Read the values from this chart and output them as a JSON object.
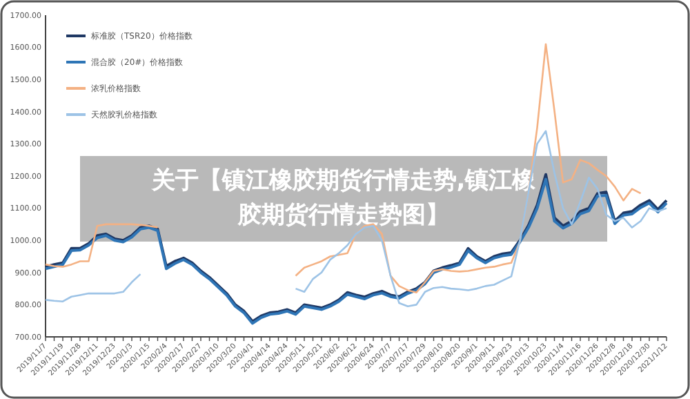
{
  "chart_data": {
    "type": "line",
    "title": "关于【镇江橡胶期货行情走势,镇江橡胶期货行情走势图】",
    "categories": [
      "2019/11/7",
      null,
      "2019/11/19",
      null,
      "2019/11/28",
      null,
      "2019/12/11",
      null,
      "2019/12/23",
      null,
      "2020/1/3",
      null,
      "2020/1/15",
      null,
      "2020/2/4",
      null,
      "2020/2/17",
      null,
      "2020/2/27",
      null,
      "2020/3/10",
      null,
      "2020/3/20",
      null,
      "2020/4/1",
      null,
      "2020/4/14",
      null,
      "2020/4/24",
      null,
      "2020/5/11",
      null,
      "2020/5/21",
      null,
      "2020/6/2",
      null,
      "2020/6/12",
      null,
      "2020/6/24",
      null,
      "2020/7/7",
      null,
      "2020/7/17",
      null,
      "2020/7/29",
      null,
      "2020/8/10",
      null,
      "2020/8/20",
      null,
      "2020/9/1",
      null,
      "2020/9/11",
      null,
      "2020/9/23",
      null,
      "2020/10/13",
      null,
      "2020/10/23",
      null,
      "2020/11/4",
      null,
      "2020/11/16",
      null,
      "2020/11/26",
      null,
      "2020/12/8",
      null,
      "2020/12/18",
      null,
      "2020/12/30",
      null,
      "2021/1/12"
    ],
    "series": [
      {
        "name": "标准胶（TSR20）价格指数",
        "color": "#1f3864",
        "values": [
          918,
          925,
          930,
          975,
          975,
          990,
          1015,
          1020,
          1005,
          1000,
          1015,
          1040,
          1045,
          1035,
          920,
          935,
          945,
          930,
          905,
          885,
          860,
          835,
          800,
          780,
          748,
          765,
          775,
          778,
          785,
          775,
          800,
          795,
          790,
          800,
          815,
          838,
          830,
          824,
          835,
          842,
          830,
          825,
          840,
          850,
          870,
          905,
          915,
          922,
          930,
          975,
          950,
          935,
          950,
          958,
          962,
          1000,
          1047,
          1110,
          1205,
          1070,
          1045,
          1060,
          1090,
          1100,
          1146,
          1150,
          1060,
          1085,
          1090,
          1110,
          1124,
          1096,
          1124
        ]
      },
      {
        "name": "混合胶（20#）价格指数",
        "color": "#2e75b6",
        "values": [
          912,
          918,
          925,
          968,
          970,
          985,
          1008,
          1015,
          1000,
          995,
          1010,
          1035,
          1040,
          1030,
          912,
          928,
          940,
          925,
          900,
          880,
          855,
          830,
          795,
          775,
          742,
          760,
          770,
          773,
          780,
          770,
          795,
          790,
          785,
          795,
          810,
          832,
          825,
          818,
          830,
          836,
          825,
          820,
          835,
          845,
          865,
          900,
          910,
          916,
          925,
          968,
          945,
          930,
          945,
          952,
          956,
          995,
          1040,
          1100,
          1190,
          1060,
          1038,
          1052,
          1082,
          1092,
          1138,
          1140,
          1052,
          1078,
          1082,
          1102,
          1116,
          1088,
          1116
        ]
      },
      {
        "name": "浓乳价格指数",
        "color": "#f4b183",
        "values": [
          925,
          920,
          918,
          925,
          935,
          935,
          1045,
          1050,
          1050,
          1050,
          1050,
          1048,
          1045,
          1040,
          null,
          null,
          null,
          null,
          null,
          null,
          null,
          null,
          null,
          null,
          null,
          null,
          null,
          null,
          null,
          890,
          915,
          925,
          935,
          950,
          955,
          960,
          1020,
          1045,
          1050,
          1020,
          890,
          858,
          845,
          838,
          870,
          905,
          910,
          905,
          903,
          905,
          910,
          915,
          918,
          925,
          930,
          996,
          1150,
          1350,
          1610,
          1403,
          1180,
          1190,
          1250,
          1240,
          1219,
          1200,
          1167,
          1124,
          1160,
          1146,
          null,
          null,
          null
        ]
      },
      {
        "name": "天然胶乳价格指数",
        "color": "#9dc3e6",
        "values": [
          815,
          812,
          810,
          825,
          830,
          835,
          835,
          835,
          835,
          840,
          870,
          895,
          null,
          null,
          null,
          null,
          null,
          null,
          null,
          null,
          null,
          null,
          null,
          null,
          null,
          null,
          null,
          null,
          null,
          850,
          840,
          880,
          900,
          940,
          960,
          985,
          1020,
          1040,
          1045,
          1000,
          890,
          805,
          795,
          800,
          840,
          852,
          855,
          850,
          848,
          845,
          850,
          858,
          862,
          875,
          888,
          1000,
          1150,
          1300,
          1340,
          1210,
          1100,
          1050,
          1120,
          1195,
          1160,
          1080,
          1060,
          1070,
          1040,
          1060,
          1100,
          1090,
          1100
        ]
      }
    ],
    "ylim": [
      700,
      1700
    ],
    "yticks": [
      {
        "value": 700,
        "label": "700.00"
      },
      {
        "value": 800,
        "label": "800.00"
      },
      {
        "value": 900,
        "label": "900.00"
      },
      {
        "value": 1000,
        "label": "1000.00"
      },
      {
        "value": 1100,
        "label": "1100.00"
      },
      {
        "value": 1200,
        "label": "1200.00"
      },
      {
        "value": 1300,
        "label": "1300.00"
      },
      {
        "value": 1400,
        "label": "1400.00"
      },
      {
        "value": 1500,
        "label": "1500.00"
      },
      {
        "value": 1600,
        "label": "1600.00"
      },
      {
        "value": 1700,
        "label": "1700.00"
      }
    ],
    "grid": false,
    "legend": "top left",
    "marker": "none",
    "line_style": "solid"
  }
}
